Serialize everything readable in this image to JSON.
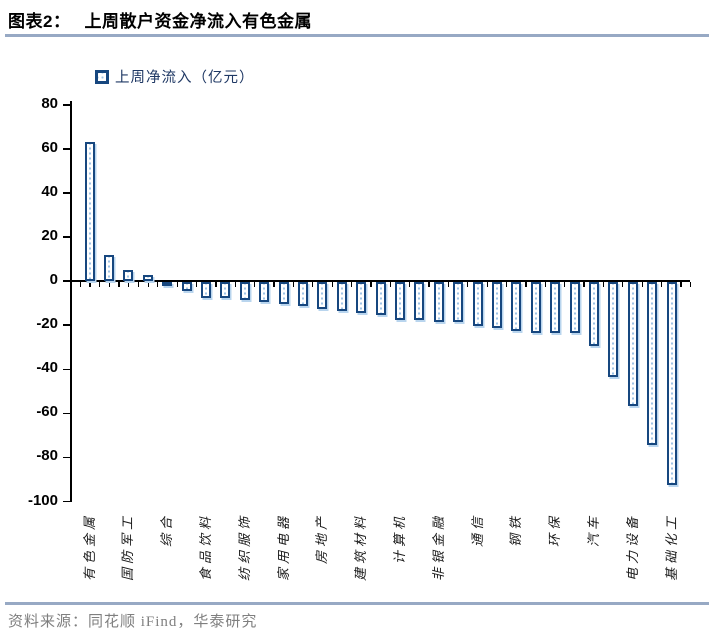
{
  "header": {
    "title_prefix": "图表2：",
    "title_main": "上周散户资金净流入有色金属"
  },
  "legend": {
    "label": "上周净流入（亿元）"
  },
  "footer": {
    "source": "资料来源：同花顺 iFind，华泰研究"
  },
  "colors": {
    "bar_outline": "#17477F",
    "bar_pattern_dot": "#9DC3E6",
    "bar_shadow": "#B9D5EE",
    "rule": "#97A9C4",
    "legend_text": "#1F3864",
    "source_text": "#7F7F7F",
    "axis": "#000000"
  },
  "chart_data": {
    "type": "bar",
    "title": "上周散户资金净流入有色金属",
    "legend": [
      "上周净流入（亿元）"
    ],
    "legend_position": "top-left",
    "unit": "亿元",
    "grid": false,
    "ylim": [
      -100,
      80
    ],
    "yticks": [
      80,
      60,
      40,
      20,
      0,
      -20,
      -40,
      -60,
      -80,
      -100
    ],
    "categories": [
      "有色金属",
      "",
      "国防军工",
      "",
      "综合",
      "",
      "食品饮料",
      "",
      "纺织服饰",
      "",
      "家用电器",
      "",
      "房地产",
      "",
      "建筑材料",
      "",
      "计算机",
      "",
      "非银金融",
      "",
      "通信",
      "",
      "钢铁",
      "",
      "环保",
      "",
      "汽车",
      "",
      "电力设备",
      "",
      "基础化工"
    ],
    "values": [
      63,
      12,
      5,
      3,
      -1,
      -4,
      -7,
      -7,
      -8,
      -9,
      -10,
      -11,
      -12,
      -13,
      -14,
      -15,
      -17,
      -17,
      -18,
      -18,
      -20,
      -21,
      -22,
      -23,
      -23,
      -23,
      -29,
      -43,
      -56,
      -74,
      -92
    ]
  }
}
